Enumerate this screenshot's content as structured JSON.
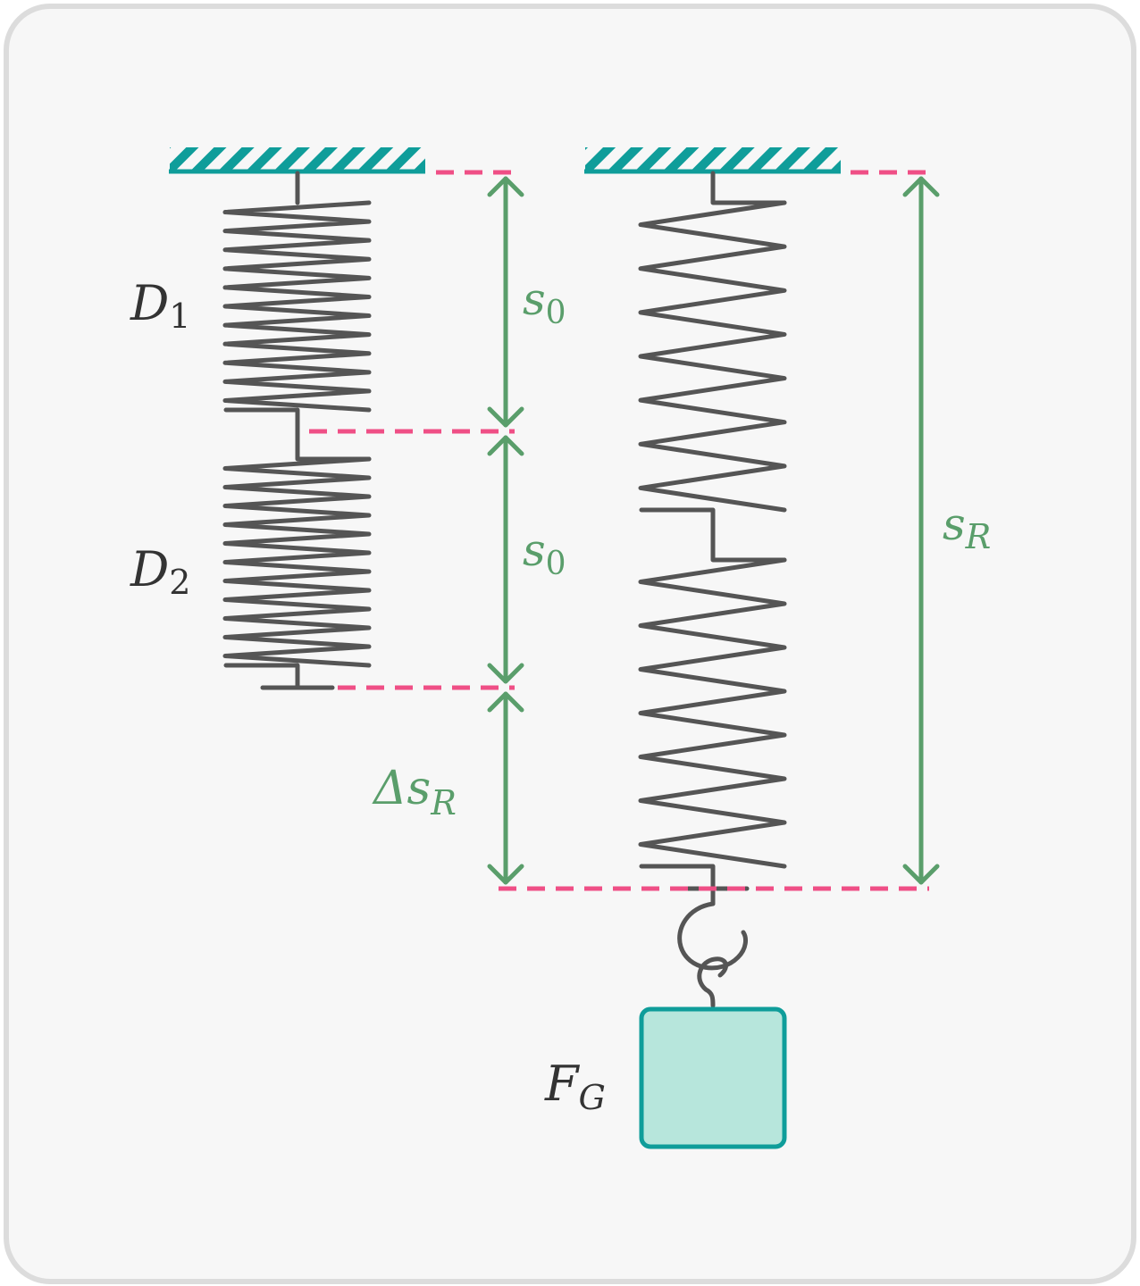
{
  "labels": {
    "d1": {
      "main": "D",
      "sub": "1"
    },
    "d2": {
      "main": "D",
      "sub": "2"
    },
    "s0_upper": {
      "main": "s",
      "sub": "0"
    },
    "s0_lower": {
      "main": "s",
      "sub": "0"
    },
    "delta_sR": {
      "main": "Δs",
      "sub": "R"
    },
    "sR": {
      "main": "s",
      "sub": "R"
    },
    "fG": {
      "main": "F",
      "sub": "G"
    }
  },
  "colors": {
    "spring": "#555555",
    "ceiling": "#0f9d9a",
    "dashed_reference": "#ef4f86",
    "dimension_arrows": "#5a9e6b",
    "mass_fill": "#b7e6dc",
    "mass_stroke": "#0f9d9a",
    "background": "#f7f7f7"
  }
}
